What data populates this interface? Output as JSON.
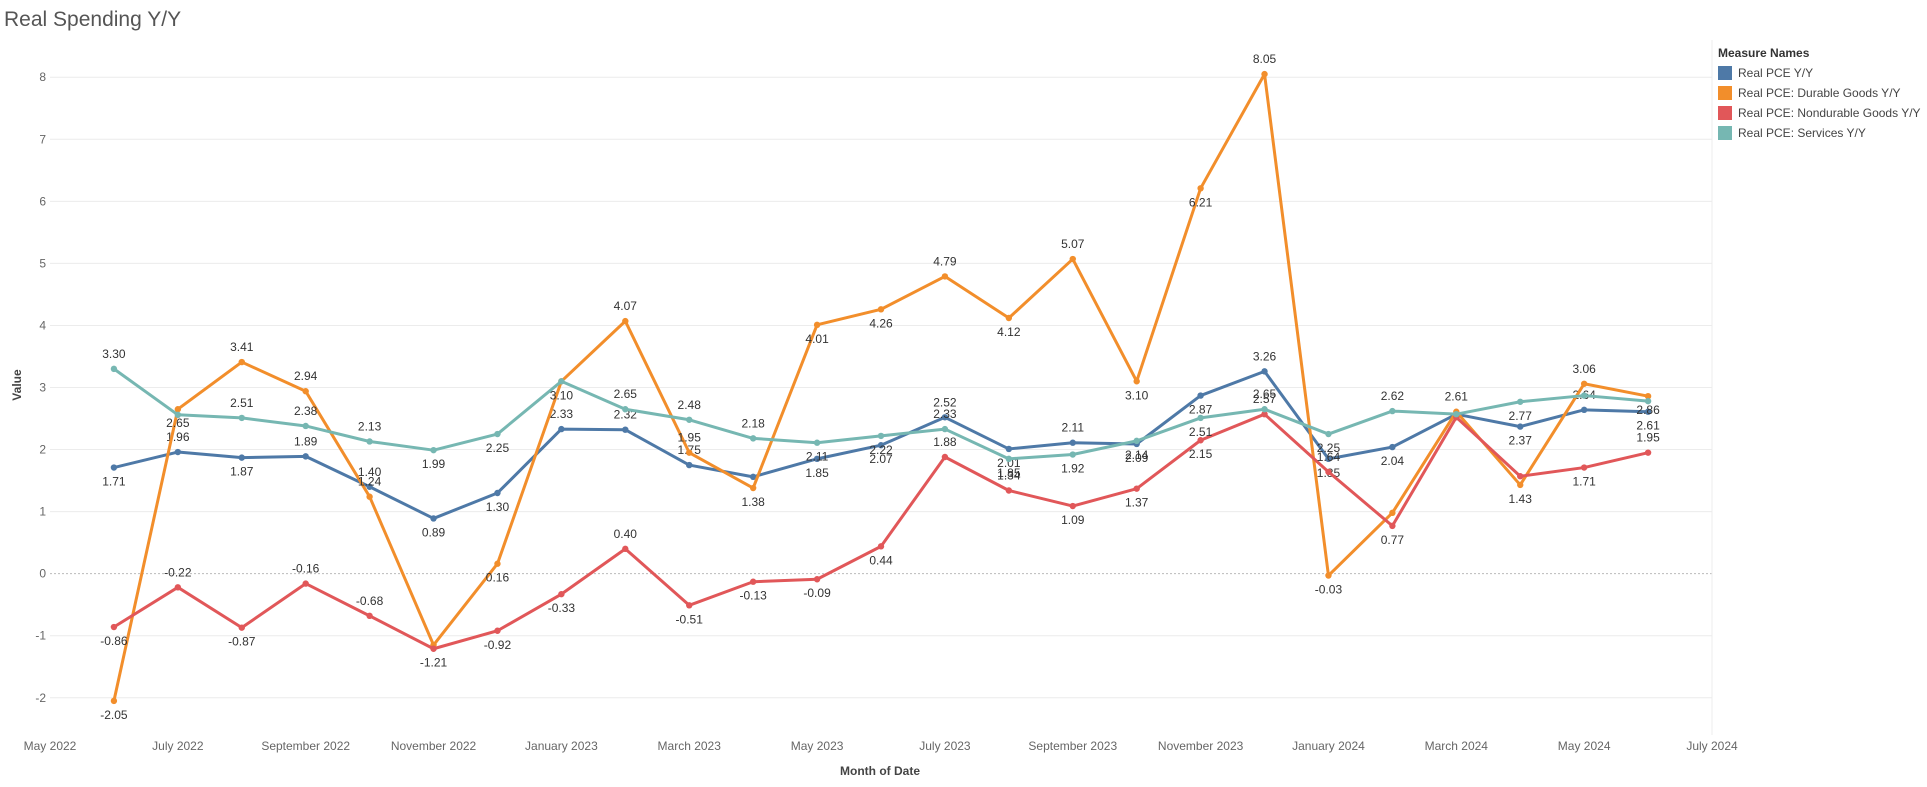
{
  "title": "Real Spending Y/Y",
  "legend": {
    "title": "Measure Names",
    "items": [
      {
        "label": "Real PCE Y/Y",
        "color": "#4e79a7"
      },
      {
        "label": "Real PCE: Durable Goods Y/Y",
        "color": "#f28e2b"
      },
      {
        "label": "Real PCE: Nondurable Goods Y/Y",
        "color": "#e15759"
      },
      {
        "label": "Real PCE: Services Y/Y",
        "color": "#76b7b2"
      }
    ]
  },
  "chart_data": {
    "type": "line",
    "title": "Real Spending Y/Y",
    "xlabel": "Month of Date",
    "ylabel": "Value",
    "ylim": [
      -2.6,
      8.6
    ],
    "yticks": [
      -2,
      -1,
      0,
      1,
      2,
      3,
      4,
      5,
      6,
      7,
      8
    ],
    "xlim": [
      "2022-05",
      "2024-07"
    ],
    "xticks": [
      {
        "date": "2022-05",
        "label": "May 2022"
      },
      {
        "date": "2022-07",
        "label": "July 2022"
      },
      {
        "date": "2022-09",
        "label": "September 2022"
      },
      {
        "date": "2022-11",
        "label": "November 2022"
      },
      {
        "date": "2023-01",
        "label": "January 2023"
      },
      {
        "date": "2023-03",
        "label": "March 2023"
      },
      {
        "date": "2023-05",
        "label": "May 2023"
      },
      {
        "date": "2023-07",
        "label": "July 2023"
      },
      {
        "date": "2023-09",
        "label": "September 2023"
      },
      {
        "date": "2023-11",
        "label": "November 2023"
      },
      {
        "date": "2024-01",
        "label": "January 2024"
      },
      {
        "date": "2024-03",
        "label": "March 2024"
      },
      {
        "date": "2024-05",
        "label": "May 2024"
      },
      {
        "date": "2024-07",
        "label": "July 2024"
      }
    ],
    "x": [
      "2022-06",
      "2022-07",
      "2022-08",
      "2022-09",
      "2022-10",
      "2022-11",
      "2022-12",
      "2023-01",
      "2023-02",
      "2023-03",
      "2023-04",
      "2023-05",
      "2023-06",
      "2023-07",
      "2023-08",
      "2023-09",
      "2023-10",
      "2023-11",
      "2023-12",
      "2024-01",
      "2024-02",
      "2024-03",
      "2024-04",
      "2024-05",
      "2024-06"
    ],
    "grid": true,
    "legend_position": "top-right",
    "series": [
      {
        "name": "Real PCE Y/Y",
        "color": "#4e79a7",
        "values": [
          1.71,
          1.96,
          1.87,
          1.89,
          1.4,
          0.89,
          1.3,
          2.33,
          2.32,
          1.75,
          1.56,
          1.85,
          2.07,
          2.52,
          2.01,
          2.11,
          2.09,
          2.87,
          3.26,
          1.85,
          2.04,
          2.57,
          2.37,
          2.64,
          2.61
        ],
        "labels": [
          "1.71",
          "1.96",
          "1.87",
          "1.89",
          "1.40",
          "0.89",
          "1.30",
          "2.33",
          "2.32",
          "1.75",
          null,
          "1.85",
          "2.07",
          "2.52",
          "2.01",
          "2.11",
          "2.09",
          "2.87",
          "3.26",
          "1.85",
          "2.04",
          null,
          "2.37",
          "2.64",
          "2.61"
        ]
      },
      {
        "name": "Real PCE: Durable Goods Y/Y",
        "color": "#f28e2b",
        "values": [
          -2.05,
          2.65,
          3.41,
          2.94,
          1.24,
          -1.15,
          0.16,
          3.1,
          4.07,
          1.95,
          1.38,
          4.01,
          4.26,
          4.79,
          4.12,
          5.07,
          3.1,
          6.21,
          8.05,
          -0.03,
          0.98,
          2.61,
          1.43,
          3.06,
          2.86
        ],
        "labels": [
          "-2.05",
          "2.65",
          "3.41",
          "2.94",
          "1.24",
          null,
          "0.16",
          "3.10",
          "4.07",
          "1.95",
          "1.38",
          "4.01",
          "4.26",
          "4.79",
          "4.12",
          "5.07",
          "3.10",
          "6.21",
          "8.05",
          "-0.03",
          null,
          "2.61",
          "1.43",
          "3.06",
          "2.86"
        ]
      },
      {
        "name": "Real PCE: Nondurable Goods Y/Y",
        "color": "#e15759",
        "values": [
          -0.86,
          -0.22,
          -0.87,
          -0.16,
          -0.68,
          -1.21,
          -0.92,
          -0.33,
          0.4,
          -0.51,
          -0.13,
          -0.09,
          0.44,
          1.88,
          1.34,
          1.09,
          1.37,
          2.15,
          2.57,
          1.64,
          0.77,
          2.52,
          1.57,
          1.71,
          1.95
        ],
        "labels": [
          "-0.86",
          "-0.22",
          "-0.87",
          "-0.16",
          "-0.68",
          "-1.21",
          "-0.92",
          "-0.33",
          "0.40",
          "-0.51",
          "-0.13",
          "-0.09",
          "0.44",
          "1.88",
          "1.34",
          "1.09",
          "1.37",
          "2.15",
          "2.57",
          "1.64",
          "0.77",
          null,
          null,
          "1.71",
          "1.95"
        ]
      },
      {
        "name": "Real PCE: Services Y/Y",
        "color": "#76b7b2",
        "values": [
          3.3,
          2.56,
          2.51,
          2.38,
          2.13,
          1.99,
          2.25,
          3.1,
          2.65,
          2.48,
          2.18,
          2.11,
          2.22,
          2.33,
          1.85,
          1.92,
          2.14,
          2.51,
          2.65,
          2.25,
          2.62,
          2.57,
          2.77,
          2.87,
          2.78
        ],
        "labels": [
          "3.30",
          null,
          "2.51",
          "2.38",
          "2.13",
          "1.99",
          "2.25",
          null,
          "2.65",
          "2.48",
          "2.18",
          "2.11",
          "2.22",
          "2.33",
          "1.85",
          "1.92",
          "2.14",
          "2.51",
          "2.65",
          "2.25",
          "2.62",
          null,
          "2.77",
          null,
          null
        ]
      }
    ]
  }
}
